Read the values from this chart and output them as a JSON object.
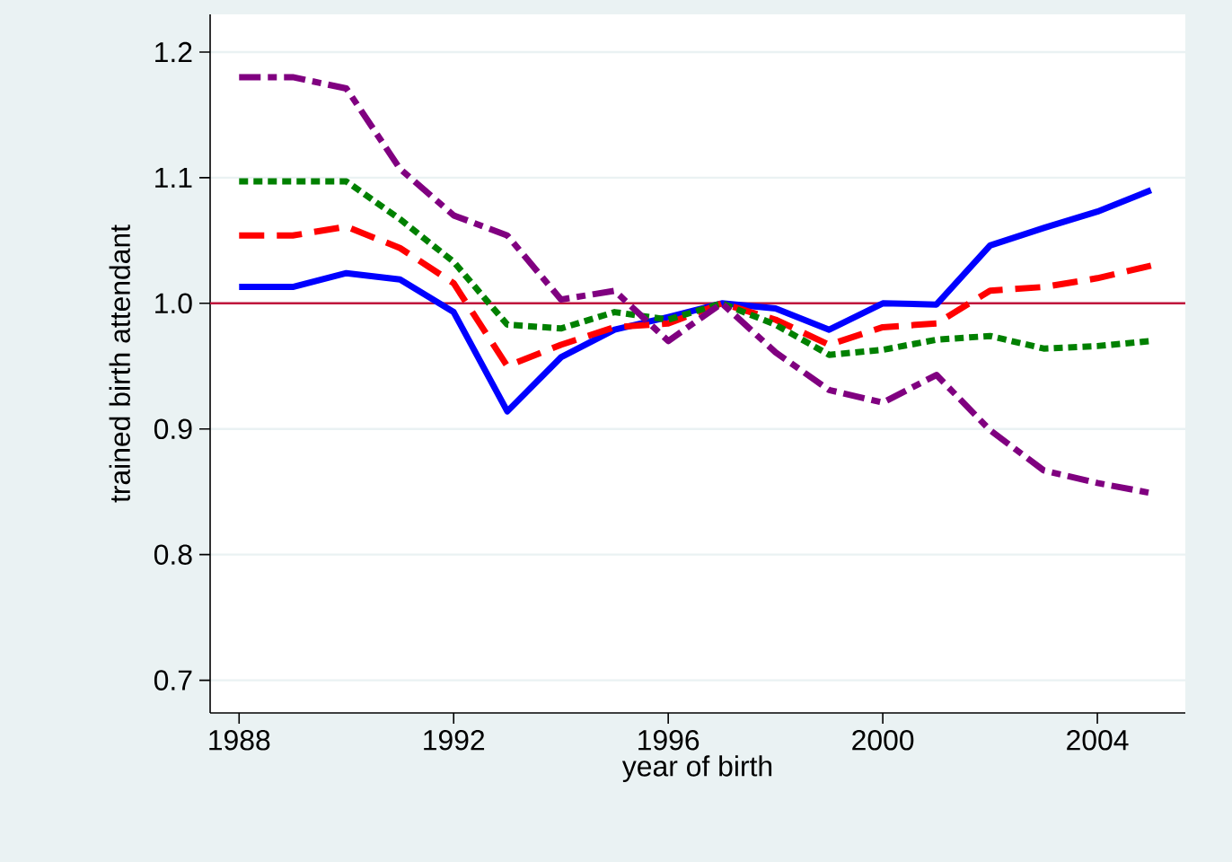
{
  "chart_data": {
    "type": "line",
    "xlabel": "year of birth",
    "ylabel": "trained birth attendant",
    "x": [
      1988,
      1989,
      1990,
      1991,
      1992,
      1993,
      1994,
      1995,
      1996,
      1997,
      1998,
      1999,
      2000,
      2001,
      2002,
      2003,
      2004,
      2005
    ],
    "series": [
      {
        "color": "#0000ff",
        "line_style": "solid",
        "values": [
          1.013,
          1.013,
          1.024,
          1.019,
          0.993,
          0.914,
          0.957,
          0.979,
          0.989,
          1.0,
          0.996,
          0.979,
          1.0,
          0.999,
          1.046,
          1.06,
          1.073,
          1.09
        ]
      },
      {
        "color": "#ff0000",
        "line_style": "dashed",
        "values": [
          1.054,
          1.054,
          1.061,
          1.044,
          1.016,
          0.95,
          0.967,
          0.981,
          0.984,
          1.0,
          0.987,
          0.967,
          0.981,
          0.984,
          1.01,
          1.013,
          1.02,
          1.03
        ]
      },
      {
        "color": "#008000",
        "line_style": "dotted",
        "values": [
          1.097,
          1.097,
          1.097,
          1.067,
          1.033,
          0.983,
          0.98,
          0.993,
          0.987,
          1.0,
          0.983,
          0.959,
          0.963,
          0.971,
          0.974,
          0.964,
          0.966,
          0.97
        ]
      },
      {
        "color": "#800080",
        "line_style": "dashdot",
        "values": [
          1.18,
          1.18,
          1.171,
          1.107,
          1.07,
          1.054,
          1.003,
          1.01,
          0.97,
          1.0,
          0.961,
          0.931,
          0.921,
          0.943,
          0.899,
          0.867,
          0.857,
          0.849
        ]
      }
    ],
    "xlim": [
      1987.46,
      2005.64
    ],
    "ylim": [
      0.674,
      1.23
    ],
    "xticks": [
      1988,
      1992,
      1996,
      2000,
      2004
    ],
    "yticks": [
      0.7,
      0.8,
      0.9,
      {
        "value": 1.0,
        "label": "1.0"
      },
      1.1,
      1.2
    ],
    "ref_lines": [
      {
        "axis": "y",
        "value": 1.0,
        "color": "#c0143c"
      }
    ],
    "grid": "y"
  }
}
